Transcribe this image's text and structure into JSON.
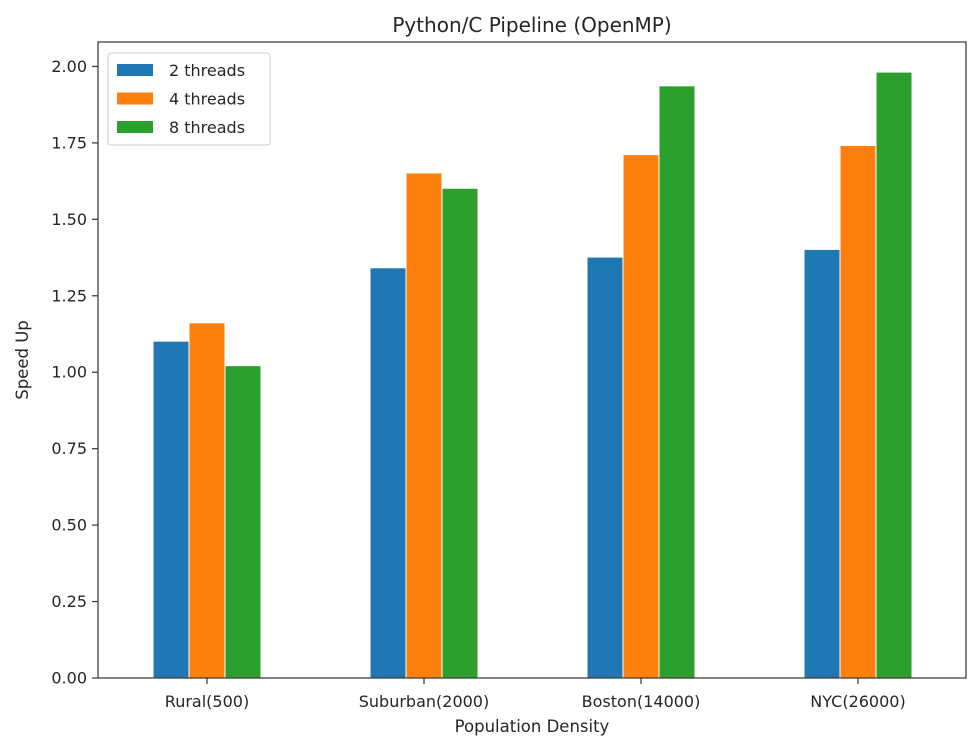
{
  "chart_data": {
    "type": "bar",
    "title": "Python/C Pipeline (OpenMP)",
    "xlabel": "Population Density",
    "ylabel": "Speed Up",
    "categories": [
      "Rural(500)",
      "Suburban(2000)",
      "Boston(14000)",
      "NYC(26000)"
    ],
    "series": [
      {
        "name": "2 threads",
        "color": "#1f77b4",
        "values": [
          1.1,
          1.34,
          1.375,
          1.4
        ]
      },
      {
        "name": "4 threads",
        "color": "#ff7f0e",
        "values": [
          1.16,
          1.65,
          1.71,
          1.74
        ]
      },
      {
        "name": "8 threads",
        "color": "#2ca02c",
        "values": [
          1.02,
          1.6,
          1.935,
          1.98
        ]
      }
    ],
    "yticks": [
      "0.00",
      "0.25",
      "0.50",
      "0.75",
      "1.00",
      "1.25",
      "1.50",
      "1.75",
      "2.00"
    ],
    "ylim": [
      0,
      2.08
    ],
    "grid": false,
    "legend_position": "top-left"
  }
}
